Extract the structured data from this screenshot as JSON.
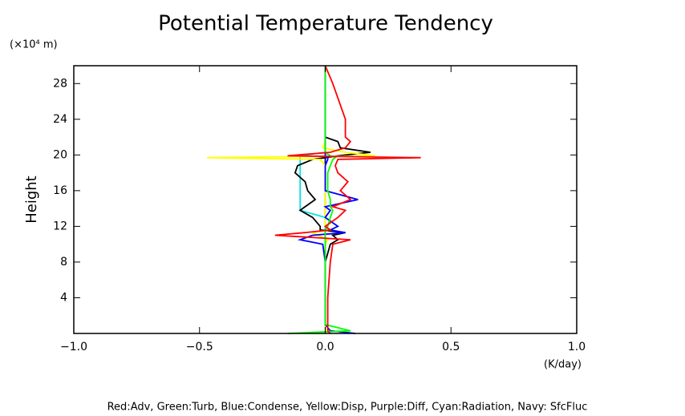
{
  "chart_data": {
    "type": "line",
    "title": "Potential Temperature Tendency",
    "y_unit_label": "(×10⁴ m)",
    "x_unit_label": "(K/day)",
    "y_axis_label": "Height",
    "legend_text": "Red:Adv, Green:Turb, Blue:Condense, Yellow:Disp, Purple:Diff, Cyan:Radiation, Navy: SfcFluc",
    "xlim": [
      -1.0,
      1.0
    ],
    "ylim": [
      0,
      30
    ],
    "xticks": [
      {
        "value": -1.0,
        "label": "−1.0"
      },
      {
        "value": -0.5,
        "label": "−0.5"
      },
      {
        "value": 0.0,
        "label": "0.0"
      },
      {
        "value": 0.5,
        "label": "0.5"
      },
      {
        "value": 1.0,
        "label": "1.0"
      }
    ],
    "yticks": [
      4,
      8,
      12,
      16,
      20,
      24,
      28
    ],
    "heights": [
      0,
      0.3,
      1,
      4,
      8,
      10,
      10.5,
      11,
      11.3,
      11.6,
      12,
      13,
      13.8,
      14.2,
      15,
      16,
      17,
      18,
      18.8,
      19.5,
      19.7,
      19.9,
      20.3,
      20.8,
      21.5,
      22,
      24,
      28,
      30
    ],
    "series": [
      {
        "color": "#000080",
        "values": [
          0,
          0,
          0,
          0,
          0,
          0,
          0,
          0,
          0,
          0,
          0,
          0,
          0,
          0,
          0,
          0,
          0,
          0,
          0,
          0,
          0,
          0,
          0,
          0,
          0,
          0,
          0,
          0,
          0
        ]
      },
      {
        "color": "#00e5e5",
        "values": [
          0,
          0,
          0,
          0,
          0,
          0,
          0,
          0,
          0,
          0,
          0,
          0,
          -0.1,
          -0.1,
          -0.1,
          -0.1,
          -0.1,
          -0.1,
          -0.1,
          -0.1,
          -0.1,
          -0.1,
          0,
          0,
          0,
          0,
          0,
          0,
          0
        ]
      },
      {
        "color": "#000000",
        "values": [
          0,
          0,
          0,
          0,
          0,
          0.02,
          0.05,
          0.03,
          0.08,
          -0.02,
          -0.02,
          -0.05,
          -0.1,
          -0.08,
          -0.04,
          -0.07,
          -0.08,
          -0.12,
          -0.11,
          -0.05,
          0.0,
          0.05,
          0.18,
          0.06,
          0.05,
          0,
          0,
          0,
          0
        ]
      },
      {
        "color": "#ffff00",
        "values": [
          0,
          0,
          0,
          0,
          0,
          0,
          0.01,
          -0.03,
          -0.05,
          0.02,
          0,
          0,
          0,
          0,
          0,
          0,
          0,
          0,
          0,
          -0.02,
          -0.47,
          0.2,
          0.08,
          -0.01,
          0,
          0,
          0,
          0,
          0
        ]
      },
      {
        "color": "#0000ff",
        "values": [
          0.12,
          0.02,
          0,
          0,
          0,
          -0.01,
          -0.1,
          -0.05,
          0.08,
          0.02,
          0.05,
          0.0,
          0.02,
          0.0,
          0.13,
          0,
          0,
          0,
          0,
          0.01,
          0.01,
          0,
          0,
          0,
          0,
          0,
          0,
          0,
          0
        ]
      },
      {
        "color": "#00ff00",
        "values": [
          -0.15,
          0.1,
          0,
          0,
          0,
          0,
          0,
          0,
          0,
          0,
          0.01,
          0.02,
          0.03,
          0.02,
          0.02,
          0.01,
          0.01,
          0.01,
          0.02,
          0.03,
          0.04,
          0.02,
          0,
          0,
          0,
          0,
          0,
          0,
          0
        ]
      },
      {
        "color": "#ff0000",
        "values": [
          0.02,
          0.01,
          0.01,
          0.01,
          0.02,
          0.03,
          0.1,
          -0.2,
          -0.08,
          0.02,
          0.0,
          0.05,
          0.08,
          0.03,
          0.1,
          0.06,
          0.09,
          0.05,
          0.04,
          0.05,
          0.38,
          -0.15,
          0.02,
          0.08,
          0.1,
          0.08,
          0.08,
          0.03,
          0.0
        ]
      }
    ]
  }
}
